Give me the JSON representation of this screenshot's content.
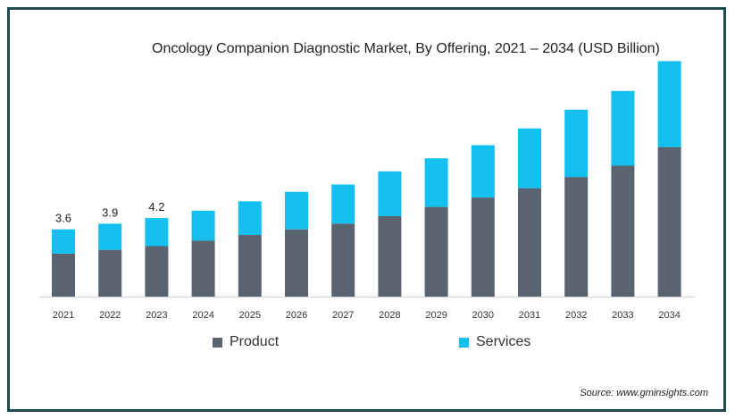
{
  "chart_data": {
    "type": "bar",
    "stacked": true,
    "title": "Oncology Companion Diagnostic Market, By Offering, 2021 – 2034 (USD Billion)",
    "categories": [
      "2021",
      "2022",
      "2023",
      "2024",
      "2025",
      "2026",
      "2027",
      "2028",
      "2029",
      "2030",
      "2031",
      "2032",
      "2033",
      "2034"
    ],
    "series": [
      {
        "name": "Product",
        "color": "#5a6470",
        "values": [
          2.3,
          2.5,
          2.7,
          3.0,
          3.3,
          3.6,
          3.9,
          4.3,
          4.8,
          5.3,
          5.8,
          6.4,
          7.0,
          8.0
        ]
      },
      {
        "name": "Services",
        "color": "#14c0f0",
        "values": [
          1.3,
          1.4,
          1.5,
          1.6,
          1.8,
          2.0,
          2.1,
          2.4,
          2.6,
          2.8,
          3.2,
          3.6,
          4.0,
          4.6
        ]
      }
    ],
    "data_labels": [
      {
        "category": "2021",
        "text": "3.6"
      },
      {
        "category": "2022",
        "text": "3.9"
      },
      {
        "category": "2023",
        "text": "4.2"
      }
    ],
    "ylim": [
      0,
      13
    ],
    "grid": false,
    "legend": "bottom"
  },
  "source": "Source: www.gminsights.com"
}
